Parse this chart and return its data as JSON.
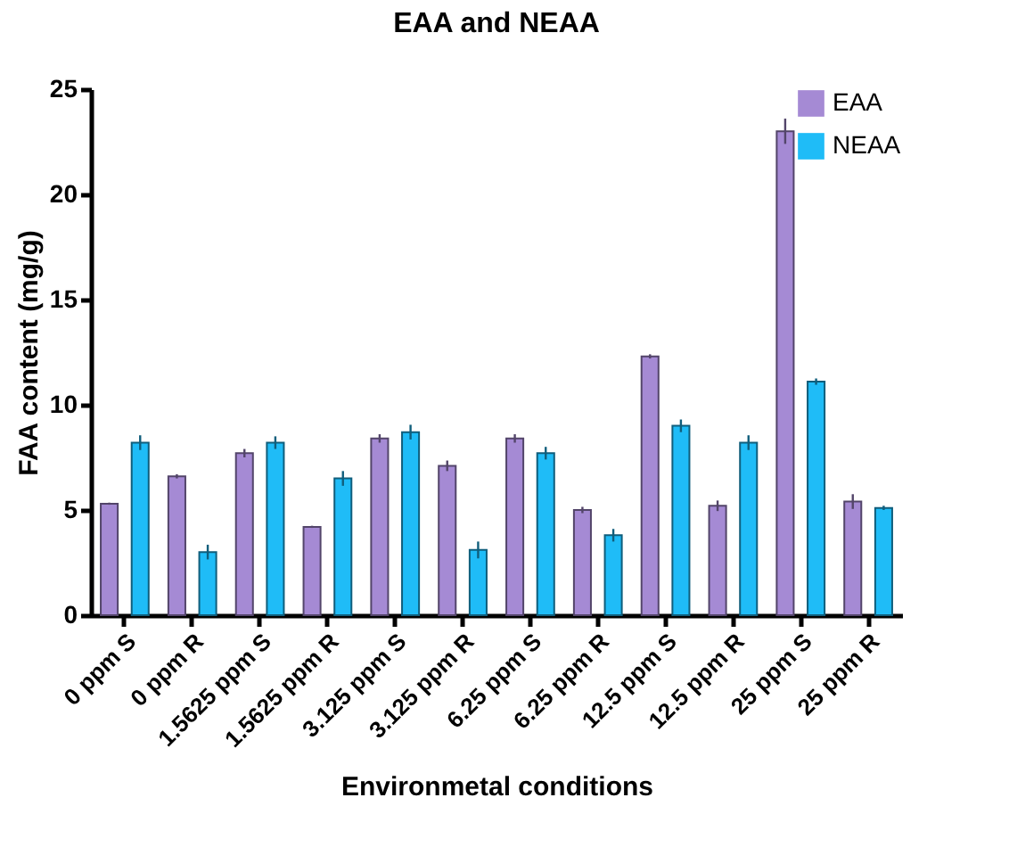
{
  "chart_data": {
    "type": "bar",
    "title": "EAA and NEAA",
    "xlabel": "Environmetal conditions",
    "ylabel": "FAA content (mg/g)",
    "categories": [
      "0 ppm S",
      "0 ppm R",
      "1.5625 ppm S",
      "1.5625 ppm R",
      "3.125 ppm S",
      "3.125 ppm R",
      "6.25 ppm S",
      "6.25 ppm R",
      "12.5 ppm S",
      "12.5 ppm R",
      "25 ppm S",
      "25 ppm R"
    ],
    "series": [
      {
        "name": "EAA",
        "color": "#a58ad4",
        "values": [
          5.3,
          6.6,
          7.7,
          4.2,
          8.4,
          7.1,
          8.4,
          5.0,
          12.3,
          5.2,
          23.0,
          5.4
        ],
        "errors": [
          0.05,
          0.1,
          0.2,
          0.05,
          0.2,
          0.25,
          0.2,
          0.15,
          0.1,
          0.25,
          0.6,
          0.35
        ]
      },
      {
        "name": "NEAA",
        "color": "#1fbcf7",
        "values": [
          8.2,
          3.0,
          8.2,
          6.5,
          8.7,
          3.1,
          7.7,
          3.8,
          9.0,
          8.2,
          11.1,
          5.1
        ],
        "errors": [
          0.35,
          0.35,
          0.3,
          0.35,
          0.35,
          0.4,
          0.3,
          0.3,
          0.3,
          0.35,
          0.15,
          0.1
        ]
      }
    ],
    "ylim": [
      0,
      25
    ],
    "yticks": [
      0,
      5,
      10,
      15,
      20,
      25
    ],
    "legend": "top right"
  }
}
